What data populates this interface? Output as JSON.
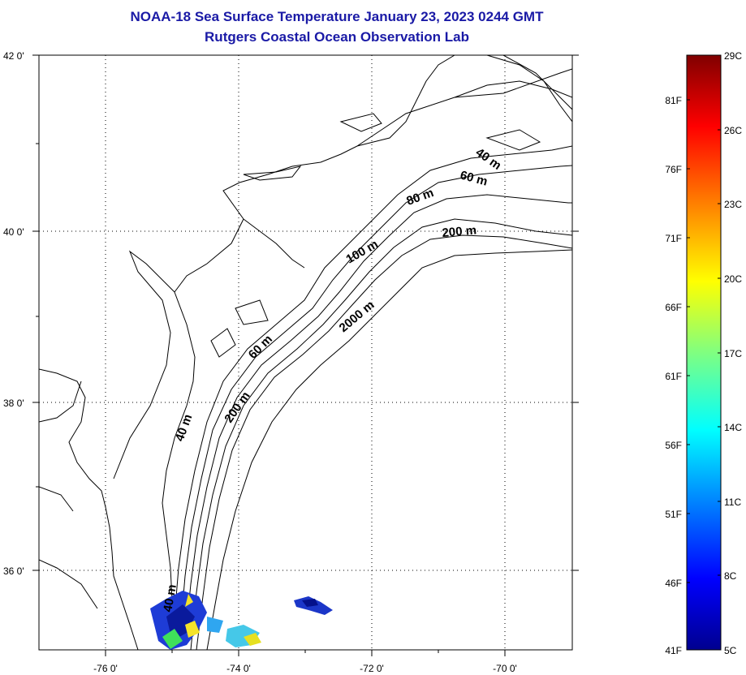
{
  "title": "NOAA-18 Sea Surface Temperature January 23, 2023 0244 GMT",
  "subtitle": "Rutgers Coastal Ocean Observation Lab",
  "map": {
    "lat_labels": [
      "42 0'",
      "40 0'",
      "38 0'",
      "36 0'"
    ],
    "lon_labels": [
      "-76 0'",
      "-74 0'",
      "-72 0'",
      "-70 0'"
    ],
    "depth_labels": [
      "40 m",
      "60 m",
      "80 m",
      "200 m",
      "100 m",
      "2000 m",
      "60 m",
      "200 m",
      "40 m",
      "40 m"
    ]
  },
  "colorbar": {
    "fahrenheit_labels": [
      "81F",
      "76F",
      "71F",
      "66F",
      "61F",
      "56F",
      "51F",
      "46F",
      "41F"
    ],
    "celsius_labels": [
      "29C",
      "26C",
      "23C",
      "20C",
      "17C",
      "14C",
      "11C",
      "8C",
      "5C"
    ],
    "colors": [
      "#00008f",
      "#0000ff",
      "#0080ff",
      "#00ffff",
      "#80ff80",
      "#ffff00",
      "#ff8000",
      "#ff0000",
      "#800000"
    ]
  }
}
